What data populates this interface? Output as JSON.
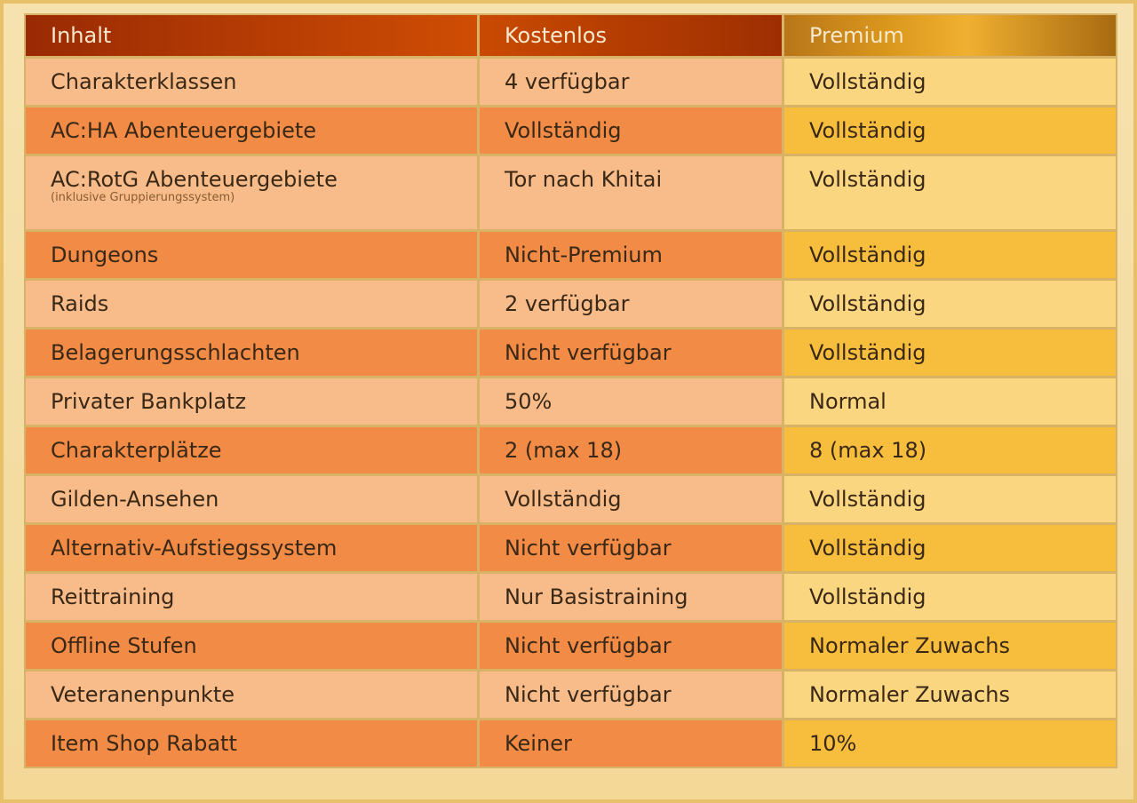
{
  "table": {
    "header": [
      "Inhalt",
      "Kostenlos",
      "Premium"
    ],
    "rows": [
      {
        "cells": [
          "Charakterklassen",
          "4 verfügbar",
          "Vollständig"
        ]
      },
      {
        "cells": [
          "AC:HA Abenteuergebiete",
          "Vollständig",
          "Vollständig"
        ]
      },
      {
        "cells": [
          "AC:RotG Abenteuergebiete",
          "Tor nach Khitai",
          "Vollständig"
        ],
        "note": "(inklusive Gruppierungssystem)"
      },
      {
        "cells": [
          "Dungeons",
          "Nicht-Premium",
          "Vollständig"
        ]
      },
      {
        "cells": [
          "Raids",
          "2 verfügbar",
          "Vollständig"
        ]
      },
      {
        "cells": [
          "Belagerungsschlachten",
          "Nicht verfügbar",
          "Vollständig"
        ]
      },
      {
        "cells": [
          "Privater Bankplatz",
          "50%",
          "Normal"
        ]
      },
      {
        "cells": [
          "Charakterplätze",
          "2 (max 18)",
          "8 (max 18)"
        ]
      },
      {
        "cells": [
          "Gilden-Ansehen",
          "Vollständig",
          "Vollständig"
        ]
      },
      {
        "cells": [
          "Alternativ-Aufstiegssystem",
          "Nicht verfügbar",
          "Vollständig"
        ]
      },
      {
        "cells": [
          "Reittraining",
          "Nur Basistraining",
          "Vollständig"
        ]
      },
      {
        "cells": [
          "Offline Stufen",
          "Nicht verfügbar",
          "Normaler Zuwachs"
        ]
      },
      {
        "cells": [
          "Veteranenpunkte",
          "Nicht verfügbar",
          "Normaler Zuwachs"
        ]
      },
      {
        "cells": [
          "Item Shop Rabatt",
          "Keiner",
          "10%"
        ]
      }
    ]
  }
}
